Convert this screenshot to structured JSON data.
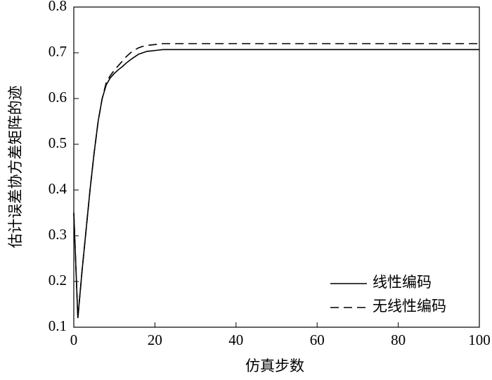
{
  "chart_data": {
    "type": "line",
    "xlabel": "仿真步数",
    "ylabel": "估计误差协方差矩阵的迹",
    "x": [
      0,
      1,
      2,
      3,
      4,
      5,
      6,
      7,
      8,
      9,
      10,
      11,
      12,
      13,
      14,
      15,
      16,
      17,
      18,
      19,
      20,
      22,
      25,
      100
    ],
    "series": [
      {
        "name": "线性编码",
        "color": "#000000",
        "dash": "none",
        "values": [
          0.35,
          0.12,
          0.22,
          0.31,
          0.4,
          0.48,
          0.55,
          0.6,
          0.63,
          0.645,
          0.655,
          0.663,
          0.67,
          0.678,
          0.685,
          0.691,
          0.697,
          0.7,
          0.703,
          0.704,
          0.705,
          0.707,
          0.707,
          0.707
        ]
      },
      {
        "name": "无线性编码",
        "color": "#000000",
        "dash": "12,7",
        "values": [
          0.35,
          0.12,
          0.22,
          0.31,
          0.4,
          0.48,
          0.55,
          0.6,
          0.635,
          0.65,
          0.662,
          0.672,
          0.682,
          0.692,
          0.7,
          0.706,
          0.711,
          0.714,
          0.716,
          0.717,
          0.718,
          0.72,
          0.72,
          0.72
        ]
      }
    ],
    "xlim": [
      0,
      100
    ],
    "xticks": [
      0,
      20,
      40,
      60,
      80,
      100
    ],
    "ylim": [
      0.1,
      0.8
    ],
    "yticks": [
      0.1,
      0.2,
      0.3,
      0.4,
      0.5,
      0.6,
      0.7,
      0.8
    ],
    "legend": "lower right",
    "grid": false
  }
}
